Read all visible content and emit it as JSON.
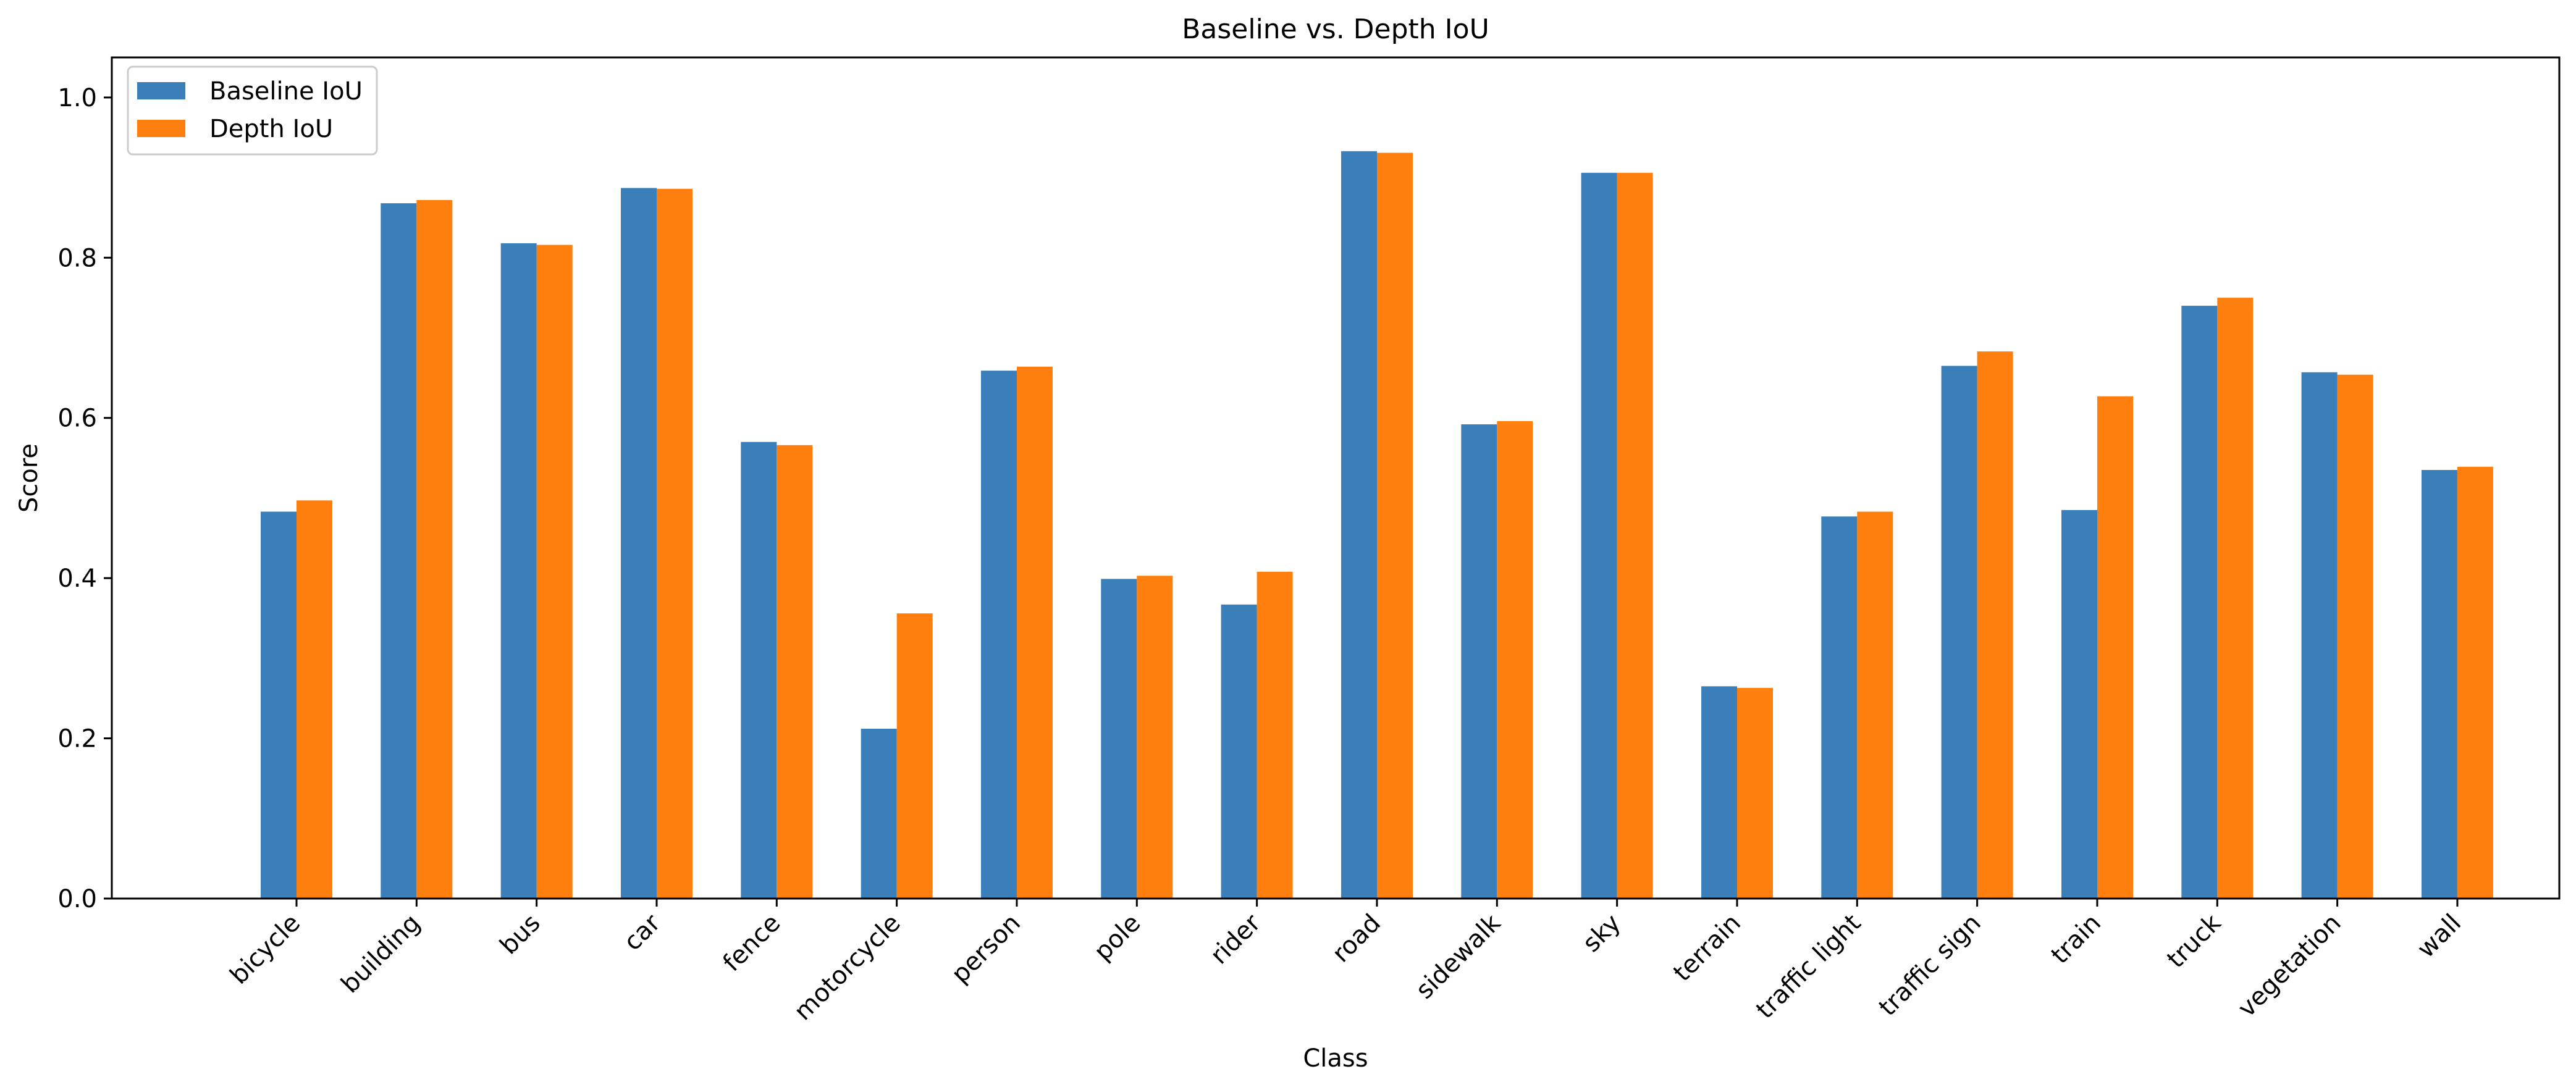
{
  "chart_data": {
    "type": "bar",
    "title": "Baseline vs. Depth IoU",
    "xlabel": "Class",
    "ylabel": "Score",
    "ylim": [
      0,
      1.05
    ],
    "yticks": [
      0.0,
      0.2,
      0.4,
      0.6,
      0.8,
      1.0
    ],
    "ytick_labels": [
      "0.0",
      "0.2",
      "0.4",
      "0.6",
      "0.8",
      "1.0"
    ],
    "grid": false,
    "legend_position": "top-left",
    "categories": [
      "bicycle",
      "building",
      "bus",
      "car",
      "fence",
      "motorcycle",
      "person",
      "pole",
      "rider",
      "road",
      "sidewalk",
      "sky",
      "terrain",
      "traffic light",
      "traffic sign",
      "train",
      "truck",
      "vegetation",
      "wall"
    ],
    "series": [
      {
        "name": "Baseline IoU",
        "color": "#3a7fba",
        "values": [
          0.483,
          0.868,
          0.818,
          0.887,
          0.57,
          0.212,
          0.659,
          0.399,
          0.367,
          0.933,
          0.592,
          0.906,
          0.265,
          0.477,
          0.665,
          0.485,
          0.74,
          0.657,
          0.535
        ]
      },
      {
        "name": "Depth IoU",
        "color": "#ff7f0e",
        "values": [
          0.497,
          0.872,
          0.816,
          0.886,
          0.566,
          0.356,
          0.664,
          0.403,
          0.408,
          0.931,
          0.596,
          0.906,
          0.263,
          0.483,
          0.683,
          0.627,
          0.75,
          0.654,
          0.539
        ]
      }
    ]
  }
}
